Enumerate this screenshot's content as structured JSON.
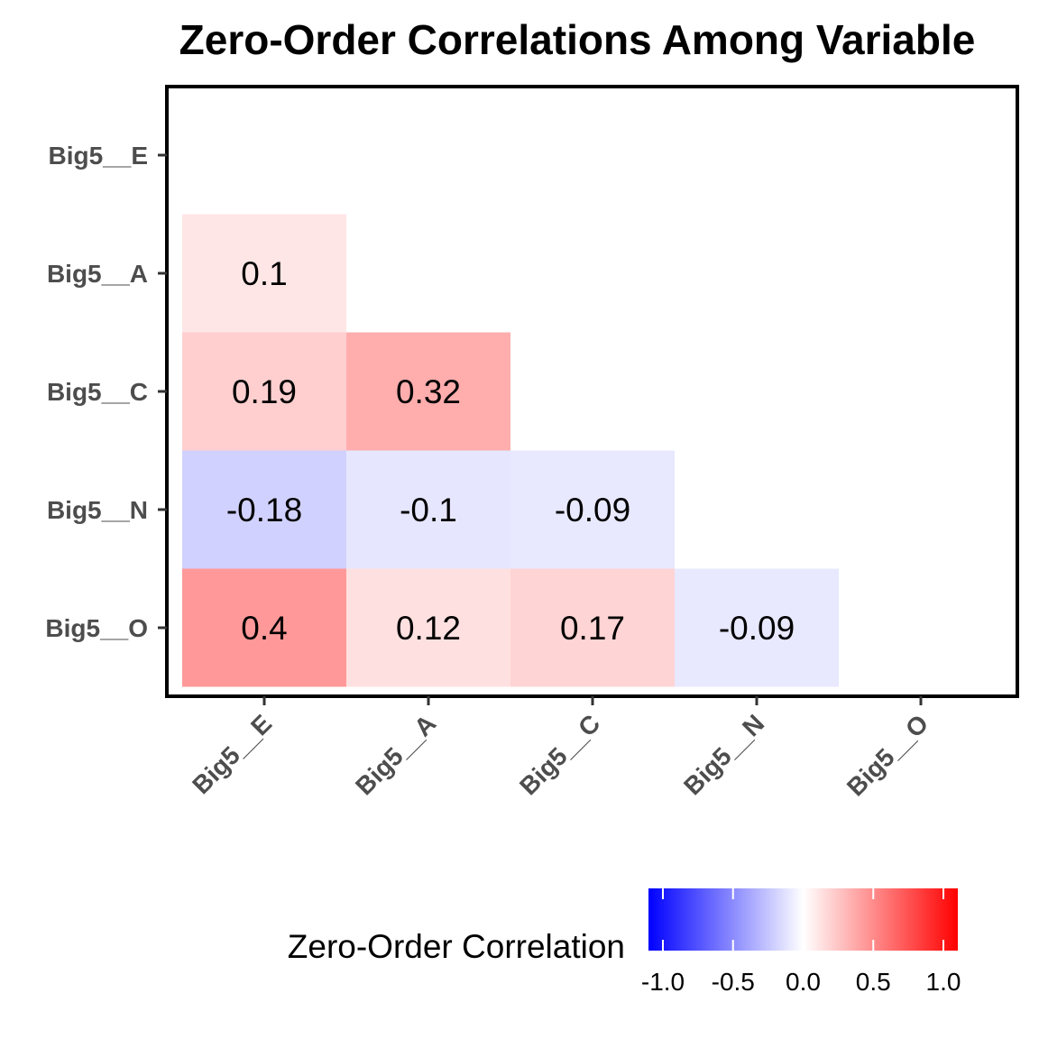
{
  "chart_data": {
    "type": "heatmap",
    "title": "Zero-Order Correlations Among Variable",
    "x_categories": [
      "Big5__E",
      "Big5__A",
      "Big5__C",
      "Big5__N",
      "Big5__O"
    ],
    "y_categories": [
      "Big5__E",
      "Big5__A",
      "Big5__C",
      "Big5__N",
      "Big5__O"
    ],
    "cells": [
      {
        "x": "Big5__E",
        "y": "Big5__A",
        "value": 0.1,
        "label": "0.1"
      },
      {
        "x": "Big5__E",
        "y": "Big5__C",
        "value": 0.19,
        "label": "0.19"
      },
      {
        "x": "Big5__A",
        "y": "Big5__C",
        "value": 0.32,
        "label": "0.32"
      },
      {
        "x": "Big5__E",
        "y": "Big5__N",
        "value": -0.18,
        "label": "-0.18"
      },
      {
        "x": "Big5__A",
        "y": "Big5__N",
        "value": -0.1,
        "label": "-0.1"
      },
      {
        "x": "Big5__C",
        "y": "Big5__N",
        "value": -0.09,
        "label": "-0.09"
      },
      {
        "x": "Big5__E",
        "y": "Big5__O",
        "value": 0.4,
        "label": "0.4"
      },
      {
        "x": "Big5__A",
        "y": "Big5__O",
        "value": 0.12,
        "label": "0.12"
      },
      {
        "x": "Big5__C",
        "y": "Big5__O",
        "value": 0.17,
        "label": "0.17"
      },
      {
        "x": "Big5__N",
        "y": "Big5__O",
        "value": -0.09,
        "label": "-0.09"
      }
    ],
    "legend": {
      "title": "Zero-Order Correlation",
      "position": "bottom",
      "range": [
        -1,
        1
      ],
      "ticks": [
        -1,
        -0.5,
        0,
        0.5,
        1
      ],
      "tick_labels": [
        "-1.0",
        "-0.5",
        "0.0",
        "0.5",
        "1.0"
      ],
      "color_low": "#0000ff",
      "color_mid": "#ffffff",
      "color_high": "#ff0000"
    },
    "grid": false
  }
}
